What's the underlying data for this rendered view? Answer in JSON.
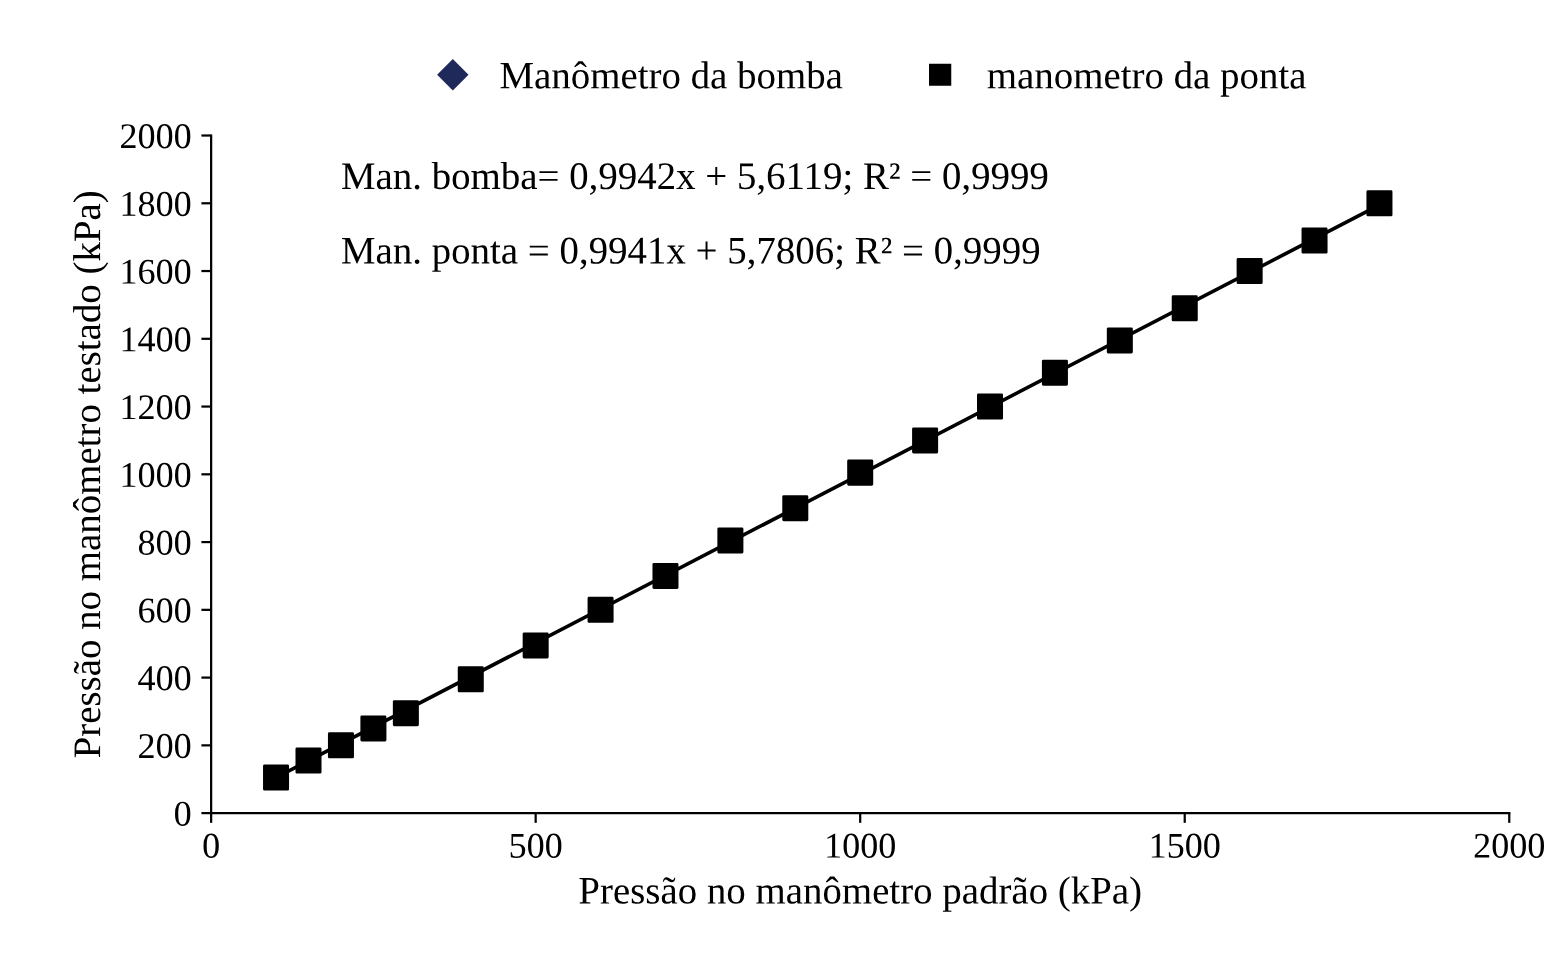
{
  "chart_data": {
    "type": "scatter",
    "xlabel": "Pressão no manômetro padrão (kPa)",
    "ylabel": "Pressão no manômetro testado (kPa)",
    "xlim": [
      0,
      2000
    ],
    "xticks": [
      0,
      500,
      1000,
      1500,
      2000
    ],
    "ylim": [
      0,
      2000
    ],
    "yticks": [
      0,
      200,
      400,
      600,
      800,
      1000,
      1200,
      1400,
      1600,
      1800,
      2000
    ],
    "grid": false,
    "legend": "top",
    "x": [
      100,
      150,
      200,
      250,
      300,
      400,
      500,
      600,
      700,
      800,
      900,
      1000,
      1100,
      1200,
      1300,
      1400,
      1500,
      1600,
      1700,
      1800
    ],
    "series": [
      {
        "name": "Manômetro da bomba",
        "color": "#1f2a5a",
        "marker": "diamond",
        "values": [
          null,
          null,
          null,
          null,
          null,
          null,
          null,
          null,
          null,
          null,
          null,
          null,
          null,
          null,
          null,
          null,
          null,
          null,
          null,
          null
        ]
      },
      {
        "name": "manometro da ponta",
        "color": "#000000",
        "marker": "square",
        "values": [
          105,
          155,
          200,
          250,
          295,
          395,
          495,
          600,
          700,
          805,
          900,
          1005,
          1100,
          1200,
          1300,
          1395,
          1490,
          1600,
          1690,
          1800
        ]
      },
      {
        "type": "line",
        "color": "#000000",
        "marker": "none",
        "line_style": "solid",
        "x": [
          100,
          1800
        ],
        "values": [
          105,
          1795
        ]
      }
    ],
    "annotations": [
      "Man. bomba= 0,9942x + 5,6119; R² = 0,9999",
      "Man. ponta = 0,9941x + 5,7806; R² = 0,9999"
    ]
  }
}
